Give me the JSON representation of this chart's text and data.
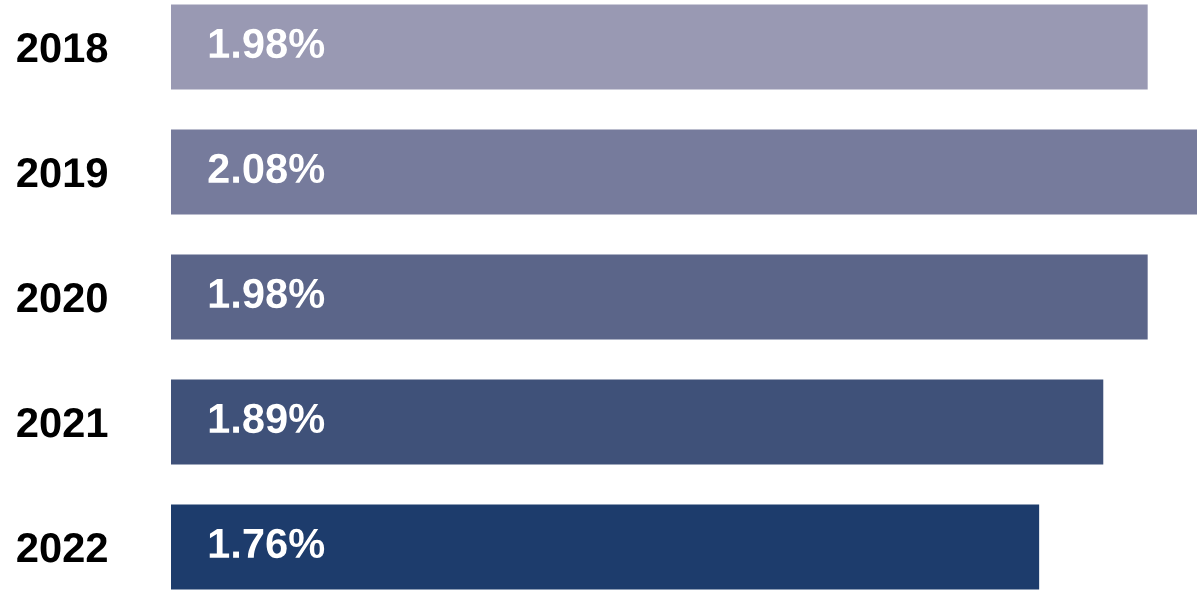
{
  "chart_data": {
    "type": "bar",
    "orientation": "horizontal",
    "categories": [
      "2018",
      "2019",
      "2020",
      "2021",
      "2022"
    ],
    "values": [
      1.98,
      2.08,
      1.98,
      1.89,
      1.76
    ],
    "value_labels": [
      "1.98%",
      "2.08%",
      "1.98%",
      "1.89%",
      "1.76%"
    ],
    "colors": [
      "#9999b3",
      "#767b9c",
      "#5b6589",
      "#3f5179",
      "#1d3c6c"
    ],
    "xlim": [
      0,
      2.08
    ],
    "tick_labels": "y",
    "grid": false,
    "legend": false
  }
}
